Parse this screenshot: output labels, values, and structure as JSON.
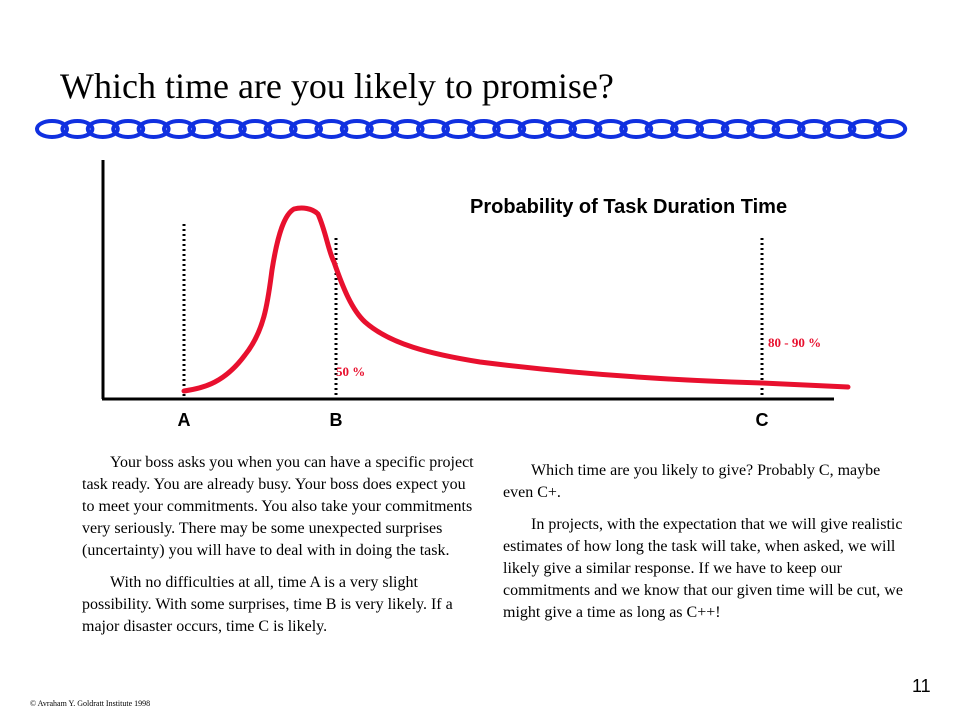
{
  "slide": {
    "title": "Which time are you likely to promise?",
    "page_number": "11",
    "copyright": "© Avraham Y. Goldratt Institute 1998"
  },
  "chart_data": {
    "type": "line",
    "title": "Probability of Task Duration Time",
    "markers": [
      {
        "label": "A",
        "probability_label": ""
      },
      {
        "label": "B",
        "probability_label": "50 %"
      },
      {
        "label": "C",
        "probability_label": "80 - 90 %"
      }
    ],
    "colors": {
      "curve": "#e8102e",
      "axes": "#000000",
      "chain": "#1030e0"
    }
  },
  "text": {
    "left_paragraphs": [
      "Your boss asks you when you can have a specific project task ready. You are already busy. Your boss does expect you to meet your commitments. You also take your commitments very seriously. There may be some unexpected surprises (uncertainty) you will have to deal with in doing the task.",
      "With no difficulties at all, time A is a very slight possibility. With some surprises, time B is very likely. If a major disaster occurs, time C is likely."
    ],
    "right_paragraphs": [
      "Which time are you likely to give? Probably C, maybe even C+.",
      "In projects, with the expectation that we will give realistic estimates of how long the task will take, when asked, we will likely give a similar response. If we have to keep our commitments and we know that our given time will be cut, we might give a time as long as C++!"
    ]
  }
}
